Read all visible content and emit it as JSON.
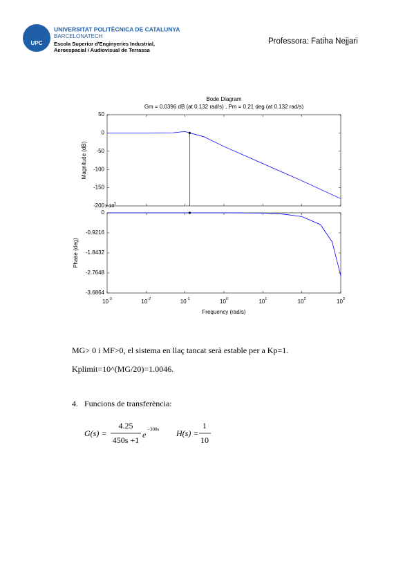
{
  "header": {
    "logo": "UPC",
    "university": "UNIVERSITAT POLITÈCNICA DE CATALUNYA",
    "brand": "BARCELONATECH",
    "school_line1": "Escola Superior d'Enginyeries Industrial,",
    "school_line2": "Aeroespacial i Audiovisual de Terrassa",
    "author": "Professora: Fatiha Nejjari"
  },
  "chart_data": [
    {
      "type": "line",
      "title": "Bode Diagram",
      "subtitle": "Gm = 0.0396 dB (at 0.132 rad/s) ,  Pm = 0.21 deg (at 0.132 rad/s)",
      "y_label": "Magnitude (dB)",
      "color": "#0000ff",
      "log_x": true,
      "x": [
        0.001,
        0.01,
        0.05,
        0.1,
        0.132,
        0.3,
        1,
        10,
        100,
        1000
      ],
      "values": [
        0,
        0,
        0.5,
        4,
        0,
        -10,
        -37,
        -84,
        -131,
        -180
      ],
      "xlim": [
        0.001,
        1000
      ],
      "ylim": [
        -200,
        50
      ],
      "yticks": [
        -200,
        -150,
        -100,
        -50,
        0,
        50
      ],
      "marker": {
        "x": 0.132,
        "y": 0
      }
    },
    {
      "type": "line",
      "y_label": "Phase (deg)",
      "x_label": "Frequency  (rad/s)",
      "color": "#0000ff",
      "log_x": true,
      "y_multiplier": "x 10",
      "y_multiplier_exponent": "5",
      "x": [
        0.001,
        1,
        10,
        30,
        100,
        300,
        600,
        1000
      ],
      "values": [
        0,
        0,
        -0.01,
        -0.05,
        -0.17,
        -0.54,
        -1.33,
        -2.89
      ],
      "xlim": [
        0.001,
        1000
      ],
      "ylim": [
        -3.6864,
        0
      ],
      "yticks": [
        -3.6864,
        -2.7648,
        -1.8432,
        -0.9216,
        0
      ],
      "xticks": [
        {
          "value": 0.001,
          "label": "10",
          "exponent": "-3"
        },
        {
          "value": 0.01,
          "label": "10",
          "exponent": "-2"
        },
        {
          "value": 0.1,
          "label": "10",
          "exponent": "-1"
        },
        {
          "value": 1,
          "label": "10",
          "exponent": "0"
        },
        {
          "value": 10,
          "label": "10",
          "exponent": "1"
        },
        {
          "value": 100,
          "label": "10",
          "exponent": "2"
        },
        {
          "value": 1000,
          "label": "10",
          "exponent": "3"
        }
      ],
      "marker": {
        "x": 0.132,
        "y": 0
      }
    }
  ],
  "body": {
    "para1": "MG> 0 i MF>0, el sistema en llaç tancat serà estable per a Kp=1.",
    "para2": "Kplimit=10^(MG/20)=1.0046.",
    "item_number": "4.",
    "item_text": "Funcions de transferència:"
  },
  "equation": {
    "g_lhs": "G(s) =",
    "g_num": "4.25",
    "g_den": "450s +1",
    "g_exp_base": "e",
    "g_exp": "−300s",
    "h_lhs": "H(s) =",
    "h_num": "1",
    "h_den": "10"
  }
}
